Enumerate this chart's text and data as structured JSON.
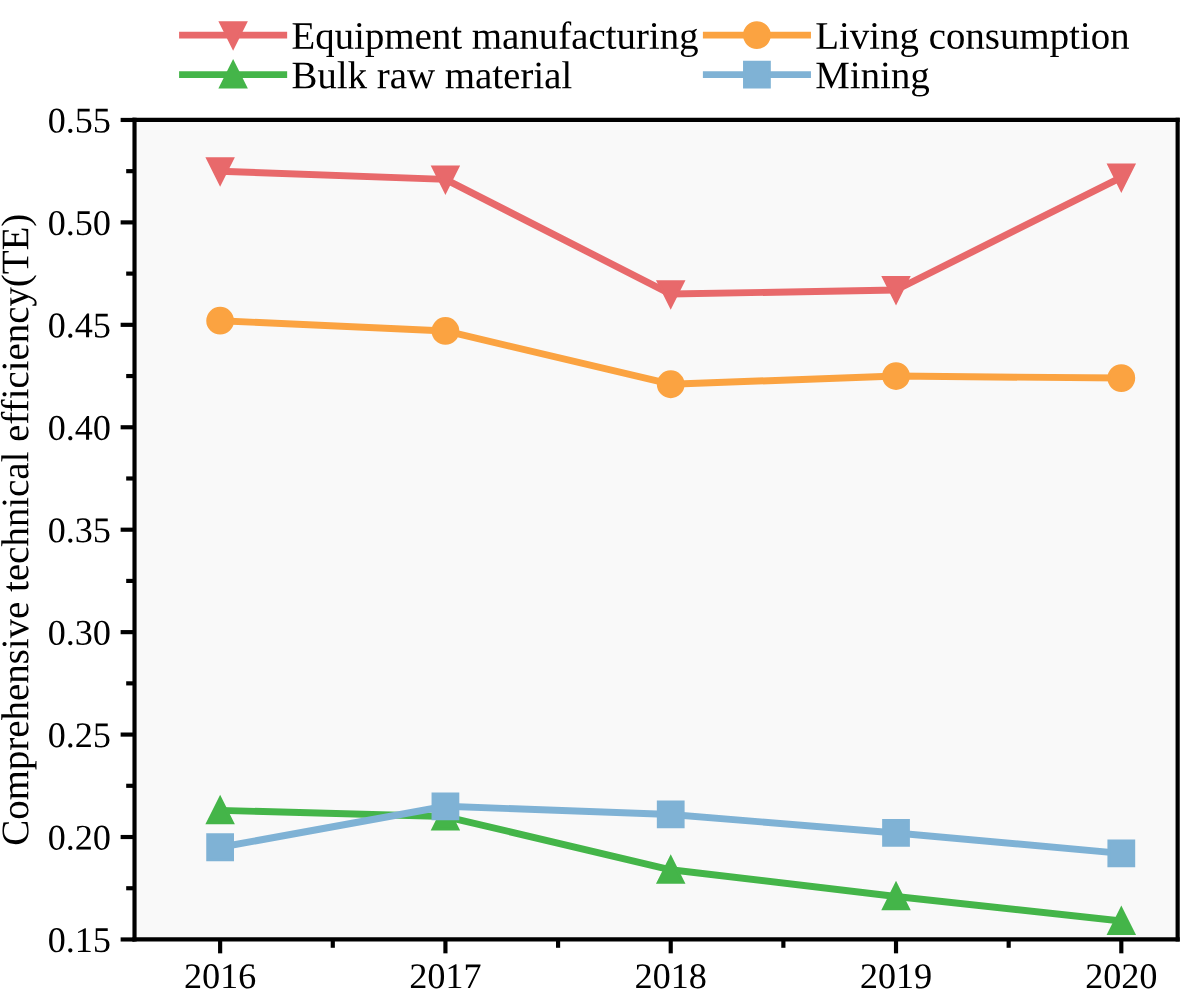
{
  "chart_data": {
    "type": "line",
    "ylabel": "Comprehensive technical efficiency(TE)",
    "x": [
      2016,
      2017,
      2018,
      2019,
      2020
    ],
    "xlim": [
      2015.62,
      2020.25
    ],
    "xticks": [
      2016,
      2017,
      2018,
      2019,
      2020
    ],
    "ylim": [
      0.15,
      0.55
    ],
    "yticks": [
      {
        "value": 0.15,
        "label": "0.15"
      },
      {
        "value": 0.2,
        "label": "0.20"
      },
      {
        "value": 0.25,
        "label": "0.25"
      },
      {
        "value": 0.3,
        "label": "0.30"
      },
      {
        "value": 0.35,
        "label": "0.35"
      },
      {
        "value": 0.4,
        "label": "0.40"
      },
      {
        "value": 0.45,
        "label": "0.45"
      },
      {
        "value": 0.5,
        "label": "0.50"
      },
      {
        "value": 0.55,
        "label": "0.55"
      }
    ],
    "grid": false,
    "legend": "top",
    "line_style": "solid",
    "series": [
      {
        "name": "Equipment manufacturing",
        "color": "#e8696b",
        "marker": "triangle_down",
        "values": [
          0.525,
          0.521,
          0.465,
          0.467,
          0.522
        ]
      },
      {
        "name": "Living consumption",
        "color": "#fba341",
        "marker": "circle",
        "values": [
          0.452,
          0.447,
          0.421,
          0.425,
          0.424
        ]
      },
      {
        "name": "Bulk raw material",
        "color": "#44b549",
        "marker": "triangle",
        "values": [
          0.213,
          0.21,
          0.184,
          0.171,
          0.159
        ]
      },
      {
        "name": "Mining",
        "color": "#7fb2d5",
        "marker": "square",
        "values": [
          0.195,
          0.215,
          0.211,
          0.202,
          0.192
        ]
      }
    ]
  }
}
